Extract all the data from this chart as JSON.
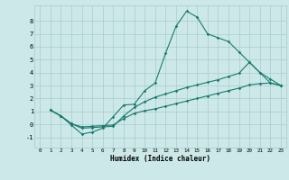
{
  "xlabel": "Humidex (Indice chaleur)",
  "xlim": [
    -0.5,
    23.5
  ],
  "ylim": [
    -1.8,
    9.2
  ],
  "yticks": [
    -1,
    0,
    1,
    2,
    3,
    4,
    5,
    6,
    7,
    8
  ],
  "xticks": [
    0,
    1,
    2,
    3,
    4,
    5,
    6,
    7,
    8,
    9,
    10,
    11,
    12,
    13,
    14,
    15,
    16,
    17,
    18,
    19,
    20,
    21,
    22,
    23
  ],
  "background_color": "#cce8e8",
  "grid_color": "#aacccc",
  "line_color": "#1a7a6e",
  "line1_x": [
    1,
    2,
    3,
    4,
    5,
    6,
    7,
    8,
    9,
    10,
    11,
    12,
    13,
    14,
    15,
    16,
    17,
    18,
    19,
    20,
    21,
    22,
    23
  ],
  "line1_y": [
    1.1,
    0.65,
    -0.05,
    -0.75,
    -0.6,
    -0.3,
    0.6,
    1.5,
    1.55,
    2.6,
    3.2,
    5.5,
    7.6,
    8.75,
    8.3,
    7.0,
    6.7,
    6.4,
    5.6,
    4.8,
    4.0,
    3.2,
    3.0
  ],
  "line2_x": [
    1,
    2,
    3,
    4,
    5,
    6,
    7,
    8,
    9,
    10,
    11,
    12,
    13,
    14,
    15,
    16,
    17,
    18,
    19,
    20,
    21,
    22,
    23
  ],
  "line2_y": [
    1.1,
    0.65,
    0.05,
    -0.3,
    -0.25,
    -0.2,
    -0.15,
    0.65,
    1.3,
    1.75,
    2.1,
    2.35,
    2.6,
    2.85,
    3.05,
    3.25,
    3.45,
    3.7,
    3.95,
    4.8,
    4.0,
    3.5,
    3.0
  ],
  "line3_x": [
    1,
    2,
    3,
    4,
    5,
    6,
    7,
    8,
    9,
    10,
    11,
    12,
    13,
    14,
    15,
    16,
    17,
    18,
    19,
    20,
    21,
    22,
    23
  ],
  "line3_y": [
    1.1,
    0.65,
    0.05,
    -0.2,
    -0.15,
    -0.1,
    -0.05,
    0.45,
    0.85,
    1.05,
    1.2,
    1.4,
    1.6,
    1.8,
    2.0,
    2.2,
    2.4,
    2.6,
    2.8,
    3.05,
    3.15,
    3.2,
    3.0
  ],
  "marker": "D",
  "markersize": 1.8,
  "linewidth": 0.8
}
